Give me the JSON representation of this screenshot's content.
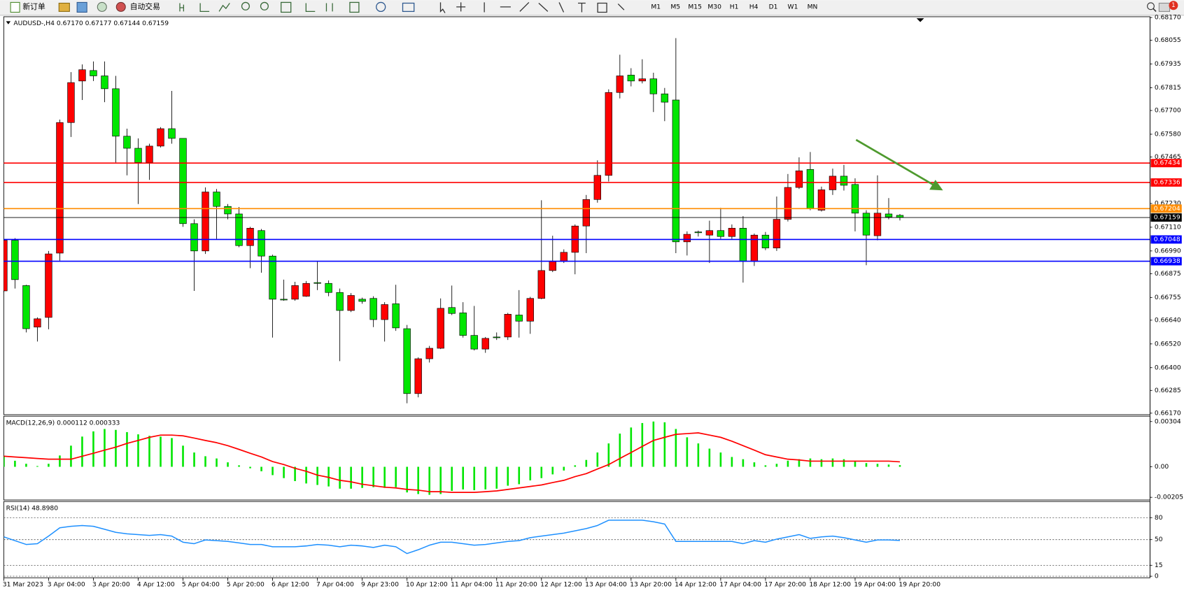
{
  "toolbar": {
    "new_order": "新订单",
    "auto_trading": "自动交易",
    "timeframes": [
      "M1",
      "M5",
      "M15",
      "M30",
      "H1",
      "H4",
      "D1",
      "W1",
      "MN"
    ],
    "badge": "1"
  },
  "chart_data": [
    {
      "type": "candlestick",
      "title": "AUDUSD-,H4 0.67170 0.67177 0.67144 0.67159",
      "categories": [
        "31 Mar 2023",
        null,
        null,
        null,
        "3 Apr 04:00",
        null,
        null,
        null,
        "3 Apr 20:00",
        null,
        null,
        null,
        "4 Apr 12:00",
        null,
        null,
        null,
        "5 Apr 04:00",
        null,
        null,
        null,
        "5 Apr 20:00",
        null,
        null,
        null,
        "6 Apr 12:00",
        null,
        null,
        null,
        "7 Apr 04:00",
        null,
        null,
        null,
        "9 Apr 23:00",
        null,
        null,
        null,
        "10 Apr 12:00",
        null,
        null,
        null,
        "11 Apr 04:00",
        null,
        null,
        null,
        "11 Apr 20:00",
        null,
        null,
        null,
        "12 Apr 12:00",
        null,
        null,
        null,
        "13 Apr 04:00",
        null,
        null,
        null,
        "13 Apr 20:00",
        null,
        null,
        null,
        "14 Apr 12:00",
        null,
        null,
        null,
        "17 Apr 04:00",
        null,
        null,
        null,
        "17 Apr 20:00",
        null,
        null,
        null,
        "18 Apr 12:00",
        null,
        null,
        null,
        "19 Apr 04:00",
        null,
        null,
        null,
        "19 Apr 20:00"
      ],
      "ohlc": [
        [
          0.66788,
          0.67051,
          0.6678,
          0.67044
        ],
        [
          0.67044,
          0.67055,
          0.668,
          0.66845
        ],
        [
          0.66815,
          0.66819,
          0.66578,
          0.66597
        ],
        [
          0.66605,
          0.66654,
          0.66532,
          0.66647
        ],
        [
          0.66654,
          0.6699,
          0.66594,
          0.66975
        ],
        [
          0.66979,
          0.67654,
          0.66941,
          0.67639
        ],
        [
          0.67639,
          0.67894,
          0.67566,
          0.67841
        ],
        [
          0.67849,
          0.67933,
          0.67753,
          0.67906
        ],
        [
          0.67902,
          0.67948,
          0.67849,
          0.67875
        ],
        [
          0.67875,
          0.67948,
          0.67742,
          0.6781
        ],
        [
          0.6781,
          0.67875,
          0.67437,
          0.6757
        ],
        [
          0.6757,
          0.67608,
          0.67372,
          0.67509
        ],
        [
          0.67509,
          0.67559,
          0.67227,
          0.67437
        ],
        [
          0.67437,
          0.67532,
          0.67349,
          0.6752
        ],
        [
          0.6752,
          0.67616,
          0.67513,
          0.67608
        ],
        [
          0.67608,
          0.67799,
          0.67532,
          0.67559
        ],
        [
          0.67559,
          0.67559,
          0.67112,
          0.67128
        ],
        [
          0.67128,
          0.6715,
          0.66788,
          0.6699
        ],
        [
          0.6699,
          0.67311,
          0.66975,
          0.67288
        ],
        [
          0.67288,
          0.67303,
          0.67051,
          0.67215
        ],
        [
          0.67215,
          0.67227,
          0.6715,
          0.67177
        ],
        [
          0.67177,
          0.67212,
          0.67009,
          0.67017
        ],
        [
          0.67017,
          0.67112,
          0.66903,
          0.67105
        ],
        [
          0.67093,
          0.67101,
          0.6688,
          0.66964
        ],
        [
          0.66964,
          0.66971,
          0.66552,
          0.66746
        ],
        [
          0.66746,
          0.66845,
          0.66738,
          0.66742
        ],
        [
          0.66746,
          0.66834,
          0.66738,
          0.66815
        ],
        [
          0.66761,
          0.66838,
          0.66758,
          0.66826
        ],
        [
          0.6683,
          0.66937,
          0.66792,
          0.66826
        ],
        [
          0.66826,
          0.66841,
          0.66761,
          0.6678
        ],
        [
          0.6678,
          0.668,
          0.66433,
          0.66689
        ],
        [
          0.66689,
          0.66777,
          0.66681,
          0.66765
        ],
        [
          0.66746,
          0.66754,
          0.66723,
          0.66735
        ],
        [
          0.6675,
          0.66761,
          0.66605,
          0.66643
        ],
        [
          0.66643,
          0.66731,
          0.66532,
          0.66719
        ],
        [
          0.66723,
          0.66819,
          0.66586,
          0.66601
        ],
        [
          0.66597,
          0.66616,
          0.6622,
          0.66269
        ],
        [
          0.66269,
          0.66452,
          0.6625,
          0.66445
        ],
        [
          0.66445,
          0.6651,
          0.66426,
          0.66498
        ],
        [
          0.66498,
          0.6675,
          0.66494,
          0.667
        ],
        [
          0.66704,
          0.66815,
          0.66666,
          0.66674
        ],
        [
          0.66677,
          0.66731,
          0.66552,
          0.66563
        ],
        [
          0.66563,
          0.66712,
          0.66487,
          0.66494
        ],
        [
          0.66494,
          0.66555,
          0.66475,
          0.66548
        ],
        [
          0.66555,
          0.66578,
          0.6654,
          0.66552
        ],
        [
          0.66555,
          0.66677,
          0.6654,
          0.6667
        ],
        [
          0.66666,
          0.66792,
          0.66552,
          0.66635
        ],
        [
          0.66635,
          0.66758,
          0.66571,
          0.6675
        ],
        [
          0.6675,
          0.67246,
          0.66746,
          0.66891
        ],
        [
          0.66891,
          0.67067,
          0.66883,
          0.66937
        ],
        [
          0.66937,
          0.66998,
          0.66929,
          0.66983
        ],
        [
          0.66983,
          0.67124,
          0.66872,
          0.67116
        ],
        [
          0.67116,
          0.67273,
          0.66979,
          0.6725
        ],
        [
          0.6725,
          0.67448,
          0.67234,
          0.67372
        ],
        [
          0.67372,
          0.67807,
          0.67341,
          0.67791
        ],
        [
          0.67791,
          0.67982,
          0.67761,
          0.67875
        ],
        [
          0.67879,
          0.67914,
          0.67822,
          0.67849
        ],
        [
          0.67849,
          0.67959,
          0.67837,
          0.6786
        ],
        [
          0.6786,
          0.67891,
          0.67692,
          0.67784
        ],
        [
          0.67784,
          0.67814,
          0.67646,
          0.67742
        ],
        [
          0.67753,
          0.68066,
          0.66979,
          0.67036
        ],
        [
          0.67036,
          0.67089,
          0.66967,
          0.67074
        ],
        [
          0.67086,
          0.67093,
          0.67063,
          0.67082
        ],
        [
          0.6707,
          0.67143,
          0.66929,
          0.67093
        ],
        [
          0.67093,
          0.67208,
          0.67051,
          0.67063
        ],
        [
          0.67063,
          0.67124,
          0.67051,
          0.67105
        ],
        [
          0.67105,
          0.67166,
          0.6683,
          0.66937
        ],
        [
          0.66937,
          0.67078,
          0.66914,
          0.6707
        ],
        [
          0.6707,
          0.67086,
          0.66994,
          0.67005
        ],
        [
          0.67005,
          0.67265,
          0.6699,
          0.6715
        ],
        [
          0.6715,
          0.67379,
          0.67139,
          0.67311
        ],
        [
          0.67311,
          0.67463,
          0.67303,
          0.67395
        ],
        [
          0.67402,
          0.6749,
          0.67196,
          0.67204
        ],
        [
          0.67196,
          0.67315,
          0.67189,
          0.67299
        ],
        [
          0.67299,
          0.67406,
          0.67273,
          0.67368
        ],
        [
          0.67368,
          0.67425,
          0.67295,
          0.67322
        ],
        [
          0.67326,
          0.67357,
          0.67089,
          0.67181
        ],
        [
          0.67181,
          0.67196,
          0.66918,
          0.6707
        ],
        [
          0.67067,
          0.67372,
          0.67044,
          0.67181
        ],
        [
          0.67177,
          0.67257,
          0.6715,
          0.67162
        ],
        [
          0.6717,
          0.67177,
          0.67144,
          0.67159
        ]
      ],
      "up_color": "#ff0000",
      "down_color": "#00e600",
      "ylim": [
        0.6617,
        0.6817
      ],
      "yticks": [
        {
          "value": 0.6617,
          "label": "0.66170"
        },
        0.66285,
        {
          "value": 0.664,
          "label": "0.66400"
        },
        {
          "value": 0.6652,
          "label": "0.66520"
        },
        {
          "value": 0.6664,
          "label": "0.66640"
        },
        0.66755,
        0.66875,
        {
          "value": 0.6699,
          "label": "0.66990"
        },
        {
          "value": 0.6711,
          "label": "0.67110"
        },
        {
          "value": 0.6723,
          "label": "0.67230"
        },
        0.67465,
        {
          "value": 0.6758,
          "label": "0.67580"
        },
        {
          "value": 0.677,
          "label": "0.67700"
        },
        0.67815,
        0.67935,
        0.68055,
        {
          "value": 0.6817,
          "label": "0.68170"
        }
      ],
      "hlines": [
        {
          "value": 0.67434,
          "label": "0.67434",
          "color": "#ff0000"
        },
        {
          "value": 0.67336,
          "label": "0.67336",
          "color": "#ff0000"
        },
        {
          "value": 0.67204,
          "label": "0.67204",
          "color": "#ff8c00"
        },
        {
          "value": 0.67159,
          "label": "0.67159",
          "color": "#000000"
        },
        {
          "value": 0.67048,
          "label": "0.67048",
          "color": "#0000ff"
        },
        {
          "value": 0.66938,
          "label": "0.66938",
          "color": "#0000ff"
        }
      ],
      "grid": false
    },
    {
      "type": "macd",
      "title": "MACD(12,26,9) 0.000112 0.000333",
      "series": [
        {
          "style": "histogram",
          "color": "#00e600",
          "values": [
            0.00071,
            0.000406,
            0.000203,
            5.1e-05,
            0.000203,
            0.00076,
            0.00142,
            0.00203,
            0.00238,
            0.00254,
            0.00248,
            0.00233,
            0.00218,
            0.00208,
            0.00203,
            0.00193,
            0.00142,
            0.00096,
            0.00071,
            0.00056,
            0.0003,
            0.0001,
            -0.0001,
            -0.0003,
            -0.00056,
            -0.00076,
            -0.00096,
            -0.00112,
            -0.00122,
            -0.00132,
            -0.00147,
            -0.00147,
            -0.00142,
            -0.00137,
            -0.00142,
            -0.00137,
            -0.00172,
            -0.00183,
            -0.00188,
            -0.00183,
            -0.00162,
            -0.00152,
            -0.00157,
            -0.00152,
            -0.00147,
            -0.00127,
            -0.00117,
            -0.00091,
            -0.00076,
            -0.00051,
            -0.00025,
            0.0001,
            0.00046,
            0.00096,
            0.00157,
            0.00223,
            0.00264,
            0.00294,
            0.00304,
            0.00299,
            0.00254,
            0.00198,
            0.00157,
            0.00122,
            0.00096,
            0.00066,
            0.00051,
            0.0003,
            0.0001,
            0.0002,
            0.00041,
            0.00051,
            0.00056,
            0.00051,
            0.00056,
            0.00051,
            0.00041,
            0.00025,
            0.0002,
            0.00015,
            0.000112
          ]
        },
        {
          "style": "line",
          "color": "#ff0000",
          "values": [
            0.00071,
            0.00066,
            0.00061,
            0.00056,
            0.00051,
            0.00051,
            0.00051,
            0.00071,
            0.00091,
            0.00112,
            0.00132,
            0.00157,
            0.00177,
            0.00198,
            0.00213,
            0.00213,
            0.00208,
            0.00193,
            0.00177,
            0.00162,
            0.00142,
            0.00117,
            0.00091,
            0.00066,
            0.00035,
            0.00015,
            -0.0001,
            -0.0003,
            -0.00056,
            -0.00071,
            -0.00091,
            -0.00101,
            -0.00117,
            -0.00127,
            -0.00137,
            -0.00142,
            -0.00152,
            -0.00157,
            -0.00167,
            -0.00167,
            -0.00172,
            -0.00172,
            -0.00172,
            -0.00167,
            -0.00162,
            -0.00152,
            -0.00142,
            -0.00132,
            -0.00122,
            -0.00106,
            -0.00091,
            -0.00066,
            -0.00046,
            -0.00015,
            0.00015,
            0.00056,
            0.00096,
            0.00137,
            0.00177,
            0.00198,
            0.00218,
            0.00223,
            0.00228,
            0.00213,
            0.00198,
            0.00172,
            0.00142,
            0.00112,
            0.00081,
            0.00066,
            0.00051,
            0.00046,
            0.00038,
            0.00038,
            0.00038,
            0.00038,
            0.00038,
            0.00038,
            0.00038,
            0.00038,
            0.000333
          ]
        }
      ],
      "ylim": [
        -0.00223,
        0.0034
      ],
      "yticks": [
        0.00304,
        {
          "value": 0,
          "label": "0.00"
        },
        -0.00205
      ],
      "grid": false
    },
    {
      "type": "rsi",
      "title": "RSI(14) 48.8980",
      "series": [
        {
          "style": "line",
          "color": "#1e90ff",
          "values": [
            53.8,
            48.6,
            43.4,
            44.5,
            54.8,
            66.2,
            68.2,
            69.3,
            68.2,
            64.1,
            60,
            57.9,
            56.9,
            55.8,
            56.9,
            54.8,
            46.5,
            44.5,
            49.6,
            48.6,
            47.6,
            45.5,
            43.4,
            43.4,
            40.3,
            40.3,
            40.3,
            41.4,
            43.4,
            42.4,
            40.3,
            42.4,
            41.4,
            39.3,
            42.4,
            40.3,
            31,
            36.2,
            42.4,
            46.5,
            46.5,
            44.5,
            42.4,
            43.4,
            45.5,
            47.6,
            48.6,
            52.7,
            54.8,
            56.9,
            58.9,
            62,
            65.1,
            69.3,
            76.5,
            76.5,
            76.5,
            76.5,
            74.4,
            71.3,
            47.6,
            47.6,
            47.6,
            47.6,
            47.6,
            47.6,
            44.5,
            48.6,
            46.5,
            50.7,
            53.8,
            56.9,
            51.7,
            53.8,
            54.8,
            52.7,
            49.6,
            46.5,
            49.6,
            49.6,
            48.898
          ]
        }
      ],
      "ylim": [
        0,
        100
      ],
      "yticks": [
        80,
        50,
        15,
        0
      ],
      "grid": true
    }
  ]
}
